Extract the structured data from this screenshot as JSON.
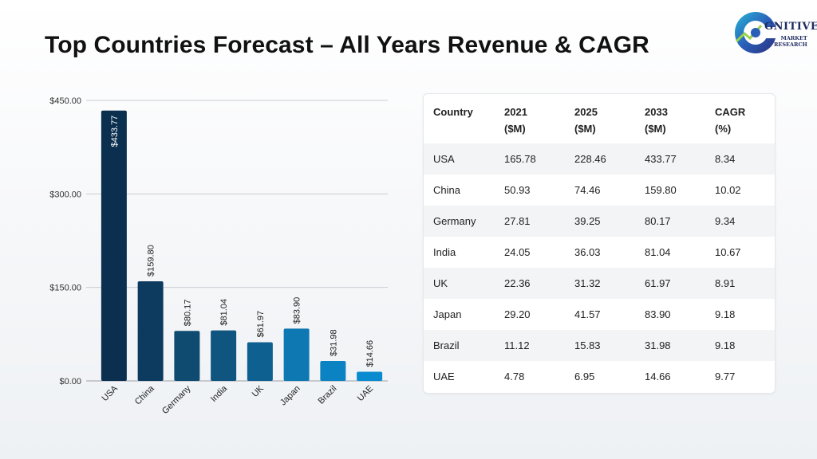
{
  "page": {
    "title": "Top Countries Forecast – All Years Revenue & CAGR",
    "logo": {
      "word": "GNITIVE",
      "sub1": "MARKET",
      "sub2": "RESEARCH"
    }
  },
  "chart_data": {
    "type": "bar",
    "categories": [
      "USA",
      "China",
      "Germany",
      "India",
      "UK",
      "Japan",
      "Brazil",
      "UAE"
    ],
    "values": [
      433.77,
      159.8,
      80.17,
      81.04,
      61.97,
      83.9,
      31.98,
      14.66
    ],
    "value_labels": [
      "$433.77",
      "$159.80",
      "$80.17",
      "$81.04",
      "$61.97",
      "$83.90",
      "$31.98",
      "$14.66"
    ],
    "yticks": [
      0,
      150,
      300,
      450
    ],
    "ytick_labels": [
      "$0.00",
      "$150.00",
      "$300.00",
      "$450.00"
    ],
    "ylim": [
      0,
      450
    ],
    "grid": true,
    "bar_colors": [
      "#0b2f4f",
      "#0d3a5f",
      "#0f4a70",
      "#0f5580",
      "#0e6091",
      "#0e78b2",
      "#0b82c1",
      "#0a8bcf"
    ],
    "title": "",
    "xlabel": "",
    "ylabel": ""
  },
  "table": {
    "headers": [
      {
        "line1": "Country",
        "line2": ""
      },
      {
        "line1": "2021",
        "line2": "($M)"
      },
      {
        "line1": "2025",
        "line2": "($M)"
      },
      {
        "line1": "2033",
        "line2": "($M)"
      },
      {
        "line1": "CAGR",
        "line2": "(%)"
      }
    ],
    "rows": [
      [
        "USA",
        "165.78",
        "228.46",
        "433.77",
        "8.34"
      ],
      [
        "China",
        "50.93",
        "74.46",
        "159.80",
        "10.02"
      ],
      [
        "Germany",
        "27.81",
        "39.25",
        "80.17",
        "9.34"
      ],
      [
        "India",
        "24.05",
        "36.03",
        "81.04",
        "10.67"
      ],
      [
        "UK",
        "22.36",
        "31.32",
        "61.97",
        "8.91"
      ],
      [
        "Japan",
        "29.20",
        "41.57",
        "83.90",
        "9.18"
      ],
      [
        "Brazil",
        "11.12",
        "15.83",
        "31.98",
        "9.18"
      ],
      [
        "UAE",
        "4.78",
        "6.95",
        "14.66",
        "9.77"
      ]
    ]
  }
}
